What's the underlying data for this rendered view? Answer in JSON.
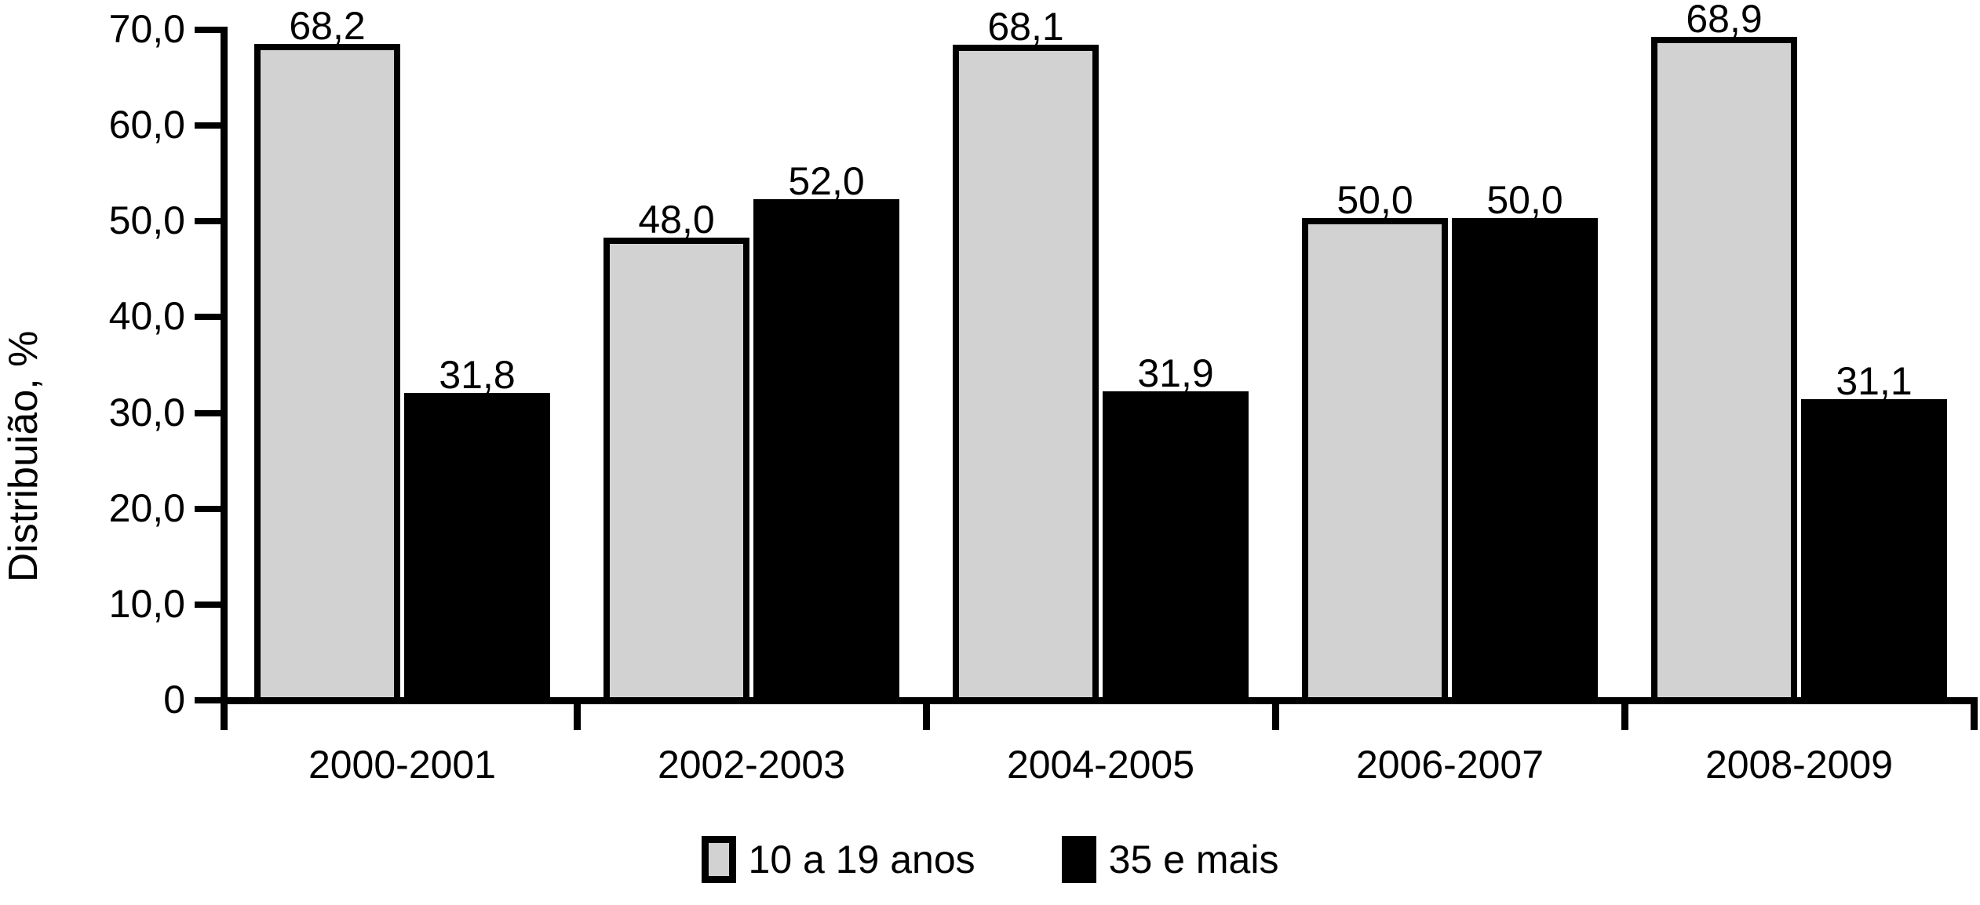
{
  "chart_data": {
    "type": "bar",
    "title": "",
    "xlabel": "",
    "ylabel": "Distribuião, %",
    "ylim": [
      0,
      70
    ],
    "grid": false,
    "legend_position": "bottom",
    "categories": [
      "2000-2001",
      "2002-2003",
      "2004-2005",
      "2006-2007",
      "2008-2009"
    ],
    "yticks": [
      {
        "value": 70,
        "label": "70,0"
      },
      {
        "value": 60,
        "label": "60,0"
      },
      {
        "value": 50,
        "label": "50,0"
      },
      {
        "value": 40,
        "label": "40,0"
      },
      {
        "value": 30,
        "label": "30,0"
      },
      {
        "value": 20,
        "label": "20,0"
      },
      {
        "value": 10,
        "label": "10,0"
      },
      {
        "value": 0,
        "label": "0"
      }
    ],
    "series": [
      {
        "name": "10 a 19 anos",
        "color": "#d2d2d2",
        "values": [
          68.2,
          48.0,
          68.1,
          50.0,
          68.9
        ],
        "value_labels": [
          "68,2",
          "48,0",
          "68,1",
          "50,0",
          "68,9"
        ]
      },
      {
        "name": "35 e mais",
        "color": "#000000",
        "values": [
          31.8,
          52.0,
          31.9,
          50.0,
          31.1
        ],
        "value_labels": [
          "31,8",
          "52,0",
          "31,9",
          "50,0",
          "31,1"
        ]
      }
    ]
  }
}
